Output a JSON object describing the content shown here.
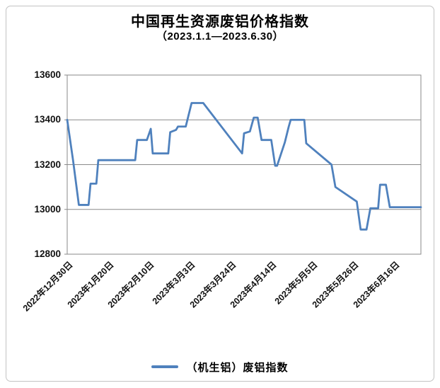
{
  "header": {
    "title": "中国再生资源废铝价格指数",
    "subtitle": "（2023.1.1—2023.6.30）"
  },
  "legend": {
    "label": "（机生铝）废铝指数"
  },
  "colors": {
    "line": "#4F81BD",
    "grid": "#8a8a8a",
    "plot_border": "#8a8a8a",
    "frame_border": "#c3c3c3",
    "text": "#111111"
  },
  "chart_data": {
    "type": "line",
    "title": "中国再生资源废铝价格指数",
    "subtitle": "（2023.1.1—2023.6.30）",
    "xlabel": "",
    "ylabel": "",
    "ylim": [
      12800,
      13600
    ],
    "yticks": [
      12800,
      13000,
      13200,
      13400,
      13600
    ],
    "grid": "horizontal",
    "legend_position": "bottom",
    "x_unit": "days since first point (weekly-style daily index)",
    "x_range": [
      0,
      182
    ],
    "xticks": [
      {
        "d": 0,
        "label": "2022年12月30日"
      },
      {
        "d": 21,
        "label": "2023年1月20日"
      },
      {
        "d": 42,
        "label": "2023年2月10日"
      },
      {
        "d": 63,
        "label": "2023年3月3日"
      },
      {
        "d": 84,
        "label": "2023年3月24日"
      },
      {
        "d": 105,
        "label": "2023年4月14日"
      },
      {
        "d": 126,
        "label": "2023年5月5日"
      },
      {
        "d": 147,
        "label": "2023年5月26日"
      },
      {
        "d": 168,
        "label": "2023年6月16日"
      }
    ],
    "series": [
      {
        "name": "（机生铝）废铝指数",
        "color": "#4F81BD",
        "points": [
          [
            0,
            13400
          ],
          [
            3,
            13220
          ],
          [
            6,
            13020
          ],
          [
            11,
            13020
          ],
          [
            12,
            13115
          ],
          [
            15,
            13115
          ],
          [
            16,
            13220
          ],
          [
            35,
            13220
          ],
          [
            36,
            13310
          ],
          [
            41,
            13310
          ],
          [
            43,
            13360
          ],
          [
            44,
            13250
          ],
          [
            52,
            13250
          ],
          [
            53,
            13345
          ],
          [
            56,
            13355
          ],
          [
            57,
            13370
          ],
          [
            61,
            13370
          ],
          [
            64,
            13475
          ],
          [
            70,
            13475
          ],
          [
            90,
            13250
          ],
          [
            91,
            13340
          ],
          [
            94,
            13348
          ],
          [
            96,
            13410
          ],
          [
            98,
            13410
          ],
          [
            100,
            13310
          ],
          [
            105,
            13310
          ],
          [
            107,
            13195
          ],
          [
            108,
            13195
          ],
          [
            112,
            13300
          ],
          [
            114,
            13370
          ],
          [
            115,
            13400
          ],
          [
            122,
            13400
          ],
          [
            123,
            13295
          ],
          [
            136,
            13200
          ],
          [
            138,
            13100
          ],
          [
            149,
            13035
          ],
          [
            151,
            12910
          ],
          [
            154,
            12910
          ],
          [
            156,
            13005
          ],
          [
            160,
            13005
          ],
          [
            161,
            13110
          ],
          [
            164,
            13110
          ],
          [
            166,
            13010
          ],
          [
            182,
            13010
          ]
        ]
      }
    ]
  }
}
